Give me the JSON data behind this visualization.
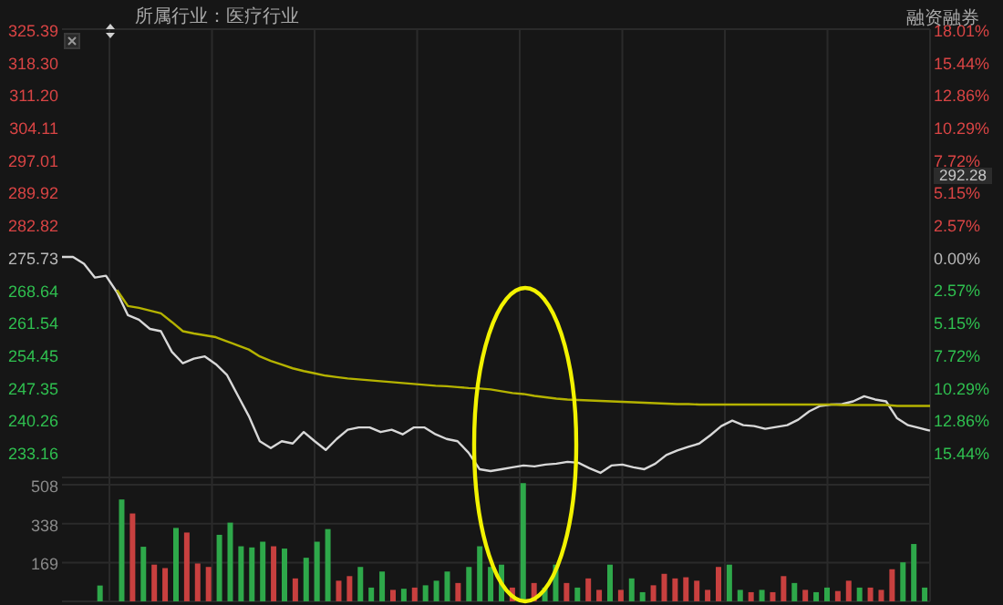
{
  "chart_data": [
    {
      "type": "line",
      "subtitle": "所属行业：医疗行业",
      "annotations": [
        "融资融券",
        "292.28"
      ],
      "categories": [
        null,
        null,
        null,
        null,
        null,
        null,
        null,
        null,
        null,
        null,
        null,
        null,
        null,
        null,
        null,
        null,
        null,
        null,
        null,
        null,
        null,
        null,
        null,
        null,
        null,
        null,
        null,
        null,
        null,
        null,
        null,
        null,
        null,
        null,
        null,
        null,
        null,
        null,
        null,
        null,
        null,
        null,
        null,
        null,
        null,
        null,
        null,
        null,
        null,
        null,
        null,
        null,
        null,
        null,
        null,
        null,
        null,
        null,
        null,
        null,
        null,
        null,
        null,
        null,
        null,
        null,
        null,
        null,
        null,
        null,
        null,
        null,
        null,
        null,
        null,
        null,
        null,
        null,
        null,
        null
      ],
      "series": [
        {
          "color": "#d8d8d8",
          "values": [
            275.7,
            275.7,
            274.2,
            271.2,
            271.6,
            268.0,
            263.0,
            262.0,
            260.0,
            259.5,
            255.0,
            252.5,
            253.5,
            254.0,
            252.3,
            250.0,
            245.5,
            241.0,
            235.5,
            234.0,
            235.5,
            235.0,
            237.5,
            235.5,
            233.6,
            236.0,
            238.0,
            238.5,
            238.5,
            237.5,
            238.0,
            237.0,
            238.5,
            238.5,
            237.0,
            236.0,
            235.5,
            233.0,
            229.4,
            229.0,
            229.4,
            229.8,
            230.2,
            230.0,
            230.4,
            230.6,
            231.0,
            230.8,
            229.6,
            228.6,
            230.2,
            230.4,
            229.8,
            229.4,
            230.6,
            232.5,
            233.5,
            234.3,
            235.0,
            236.8,
            238.8,
            240.0,
            239.0,
            238.8,
            238.2,
            238.6,
            239.0,
            240.2,
            242.0,
            243.2,
            243.5,
            243.6,
            244.2,
            245.3,
            244.6,
            244.2,
            240.5,
            239.0,
            238.4,
            237.8
          ]
        },
        {
          "color": "#b5b300",
          "values": [
            null,
            null,
            null,
            null,
            null,
            268.5,
            265.0,
            264.6,
            264.0,
            263.4,
            261.5,
            259.5,
            259.0,
            258.6,
            258.2,
            257.3,
            256.4,
            255.5,
            254.0,
            253.0,
            252.2,
            251.4,
            250.8,
            250.3,
            249.8,
            249.5,
            249.2,
            249.0,
            248.8,
            248.6,
            248.4,
            248.2,
            248.0,
            247.8,
            247.6,
            247.5,
            247.3,
            247.1,
            247.0,
            246.8,
            246.4,
            246.0,
            245.8,
            245.4,
            245.1,
            244.8,
            244.6,
            244.5,
            244.4,
            244.3,
            244.2,
            244.1,
            244.0,
            243.9,
            243.8,
            243.7,
            243.6,
            243.6,
            243.5,
            243.5,
            243.5,
            243.5,
            243.5,
            243.5,
            243.5,
            243.5,
            243.5,
            243.5,
            243.5,
            243.5,
            243.5,
            243.4,
            243.4,
            243.4,
            243.4,
            243.4,
            243.2,
            243.2,
            243.2,
            243.2
          ]
        }
      ],
      "ylim": [
        227.6,
        325.39
      ],
      "yticks": [
        325.39,
        {
          "value": 318.3,
          "label": "318.30"
        },
        {
          "value": 311.2,
          "label": "311.20"
        },
        304.11,
        297.01,
        289.92,
        282.82,
        275.73,
        268.64,
        261.54,
        254.45,
        247.35,
        240.26,
        233.16
      ],
      "y2lim": [
        -17.46,
        18.01
      ],
      "y2ticks": [
        {
          "value": 18.01,
          "label": "18.01%"
        },
        {
          "value": 15.44,
          "label": "15.44%"
        },
        {
          "value": 12.86,
          "label": "12.86%"
        },
        {
          "value": 10.29,
          "label": "10.29%"
        },
        {
          "value": 7.72,
          "label": "7.72%"
        },
        {
          "value": 5.15,
          "label": "5.15%"
        },
        {
          "value": 2.57,
          "label": "2.57%"
        },
        {
          "value": 0,
          "label": "0.00%"
        },
        {
          "value": -2.57,
          "label": "2.57%"
        },
        {
          "value": -5.15,
          "label": "5.15%"
        },
        {
          "value": -7.72,
          "label": "7.72%"
        },
        {
          "value": -10.29,
          "label": "10.29%"
        },
        {
          "value": -12.86,
          "label": "12.86%"
        },
        {
          "value": -15.44,
          "label": "15.44%"
        }
      ],
      "grid": true,
      "marker": "none"
    },
    {
      "type": "bar",
      "categories": [
        null,
        null,
        null,
        null,
        null,
        null,
        null,
        null,
        null,
        null,
        null,
        null,
        null,
        null,
        null,
        null,
        null,
        null,
        null,
        null,
        null,
        null,
        null,
        null,
        null,
        null,
        null,
        null,
        null,
        null,
        null,
        null,
        null,
        null,
        null,
        null,
        null,
        null,
        null,
        null,
        null,
        null,
        null,
        null,
        null,
        null,
        null,
        null,
        null,
        null,
        null,
        null,
        null,
        null,
        null,
        null,
        null,
        null,
        null,
        null,
        null,
        null,
        null,
        null,
        null,
        null,
        null,
        null,
        null,
        null,
        null,
        null,
        null,
        null,
        null,
        null,
        null,
        null,
        null,
        null
      ],
      "values": [
        null,
        null,
        null,
        69,
        null,
        444,
        383,
        238,
        160,
        145,
        320,
        300,
        165,
        150,
        290,
        343,
        240,
        235,
        260,
        240,
        230,
        100,
        190,
        260,
        315,
        90,
        110,
        150,
        60,
        130,
        50,
        55,
        60,
        70,
        90,
        130,
        80,
        150,
        240,
        150,
        160,
        60,
        515,
        80,
        60,
        160,
        80,
        60,
        100,
        50,
        160,
        50,
        100,
        40,
        70,
        120,
        100,
        105,
        90,
        50,
        150,
        160,
        50,
        40,
        50,
        40,
        110,
        80,
        50,
        40,
        60,
        45,
        90,
        60,
        60,
        50,
        140,
        170,
        250,
        60
      ],
      "colors": [
        "#2ea84a",
        "#2ea84a",
        "#2ea84a",
        "#2ea84a",
        "#2ea84a",
        "#2ea84a",
        "#c8403f",
        "#2ea84a",
        "#c8403f",
        "#c8403f",
        "#2ea84a",
        "#c8403f",
        "#c8403f",
        "#c8403f",
        "#2ea84a",
        "#2ea84a",
        "#2ea84a",
        "#2ea84a",
        "#2ea84a",
        "#c8403f",
        "#2ea84a",
        "#c8403f",
        "#2ea84a",
        "#2ea84a",
        "#2ea84a",
        "#c8403f",
        "#c8403f",
        "#2ea84a",
        "#2ea84a",
        "#2ea84a",
        "#c8403f",
        "#2ea84a",
        "#c8403f",
        "#2ea84a",
        "#2ea84a",
        "#2ea84a",
        "#c8403f",
        "#2ea84a",
        "#2ea84a",
        "#2ea84a",
        "#2ea84a",
        "#c8403f",
        "#2ea84a",
        "#c8403f",
        "#2ea84a",
        "#2ea84a",
        "#c8403f",
        "#2ea84a",
        "#c8403f",
        "#c8403f",
        "#2ea84a",
        "#c8403f",
        "#2ea84a",
        "#2ea84a",
        "#c8403f",
        "#c8403f",
        "#c8403f",
        "#c8403f",
        "#c8403f",
        "#c8403f",
        "#c8403f",
        "#2ea84a",
        "#2ea84a",
        "#c8403f",
        "#2ea84a",
        "#c8403f",
        "#c8403f",
        "#2ea84a",
        "#c8403f",
        "#2ea84a",
        "#2ea84a",
        "#c8403f",
        "#c8403f",
        "#2ea84a",
        "#c8403f",
        "#c8403f",
        "#c8403f",
        "#2ea84a",
        "#2ea84a",
        "#2ea84a"
      ],
      "ylim": [
        0,
        540
      ],
      "yticks": [
        169,
        338,
        508
      ],
      "grid": true
    }
  ]
}
